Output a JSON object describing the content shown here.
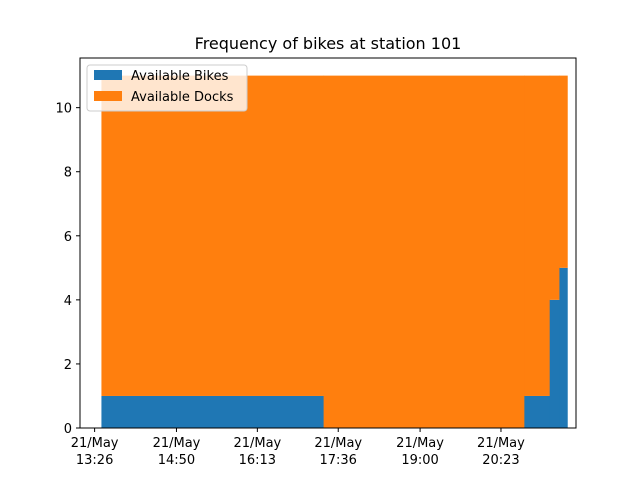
{
  "chart_data": {
    "type": "area",
    "title": "Frequency of bikes at station 101",
    "xlabel": "",
    "ylabel": "",
    "x_axis": "time",
    "y_ticks": [
      0,
      2,
      4,
      6,
      8,
      10
    ],
    "ylim": [
      0,
      11.55
    ],
    "xlim": [
      "21 May 13:11",
      "21 May 21:40"
    ],
    "x_ticks": [
      {
        "time": "13:26",
        "label_line1": "21/May",
        "label_line2": "13:26"
      },
      {
        "time": "14:50",
        "label_line1": "21/May",
        "label_line2": "14:50"
      },
      {
        "time": "16:13",
        "label_line1": "21/May",
        "label_line2": "16:13"
      },
      {
        "time": "17:36",
        "label_line1": "21/May",
        "label_line2": "17:36"
      },
      {
        "time": "19:00",
        "label_line1": "21/May",
        "label_line2": "19:00"
      },
      {
        "time": "20:23",
        "label_line1": "21/May",
        "label_line2": "20:23"
      }
    ],
    "step_times": [
      "13:33",
      "17:21",
      "20:47",
      "21:13",
      "21:23",
      "21:31"
    ],
    "series": [
      {
        "name": "Available Bikes",
        "color": "#1f77b4",
        "values": [
          1,
          0,
          1,
          4,
          5
        ]
      },
      {
        "name": "Available Docks",
        "color": "#ff7f0e",
        "values": [
          10,
          11,
          10,
          7,
          6
        ]
      }
    ],
    "legend_position": "upper-left",
    "grid": false
  }
}
